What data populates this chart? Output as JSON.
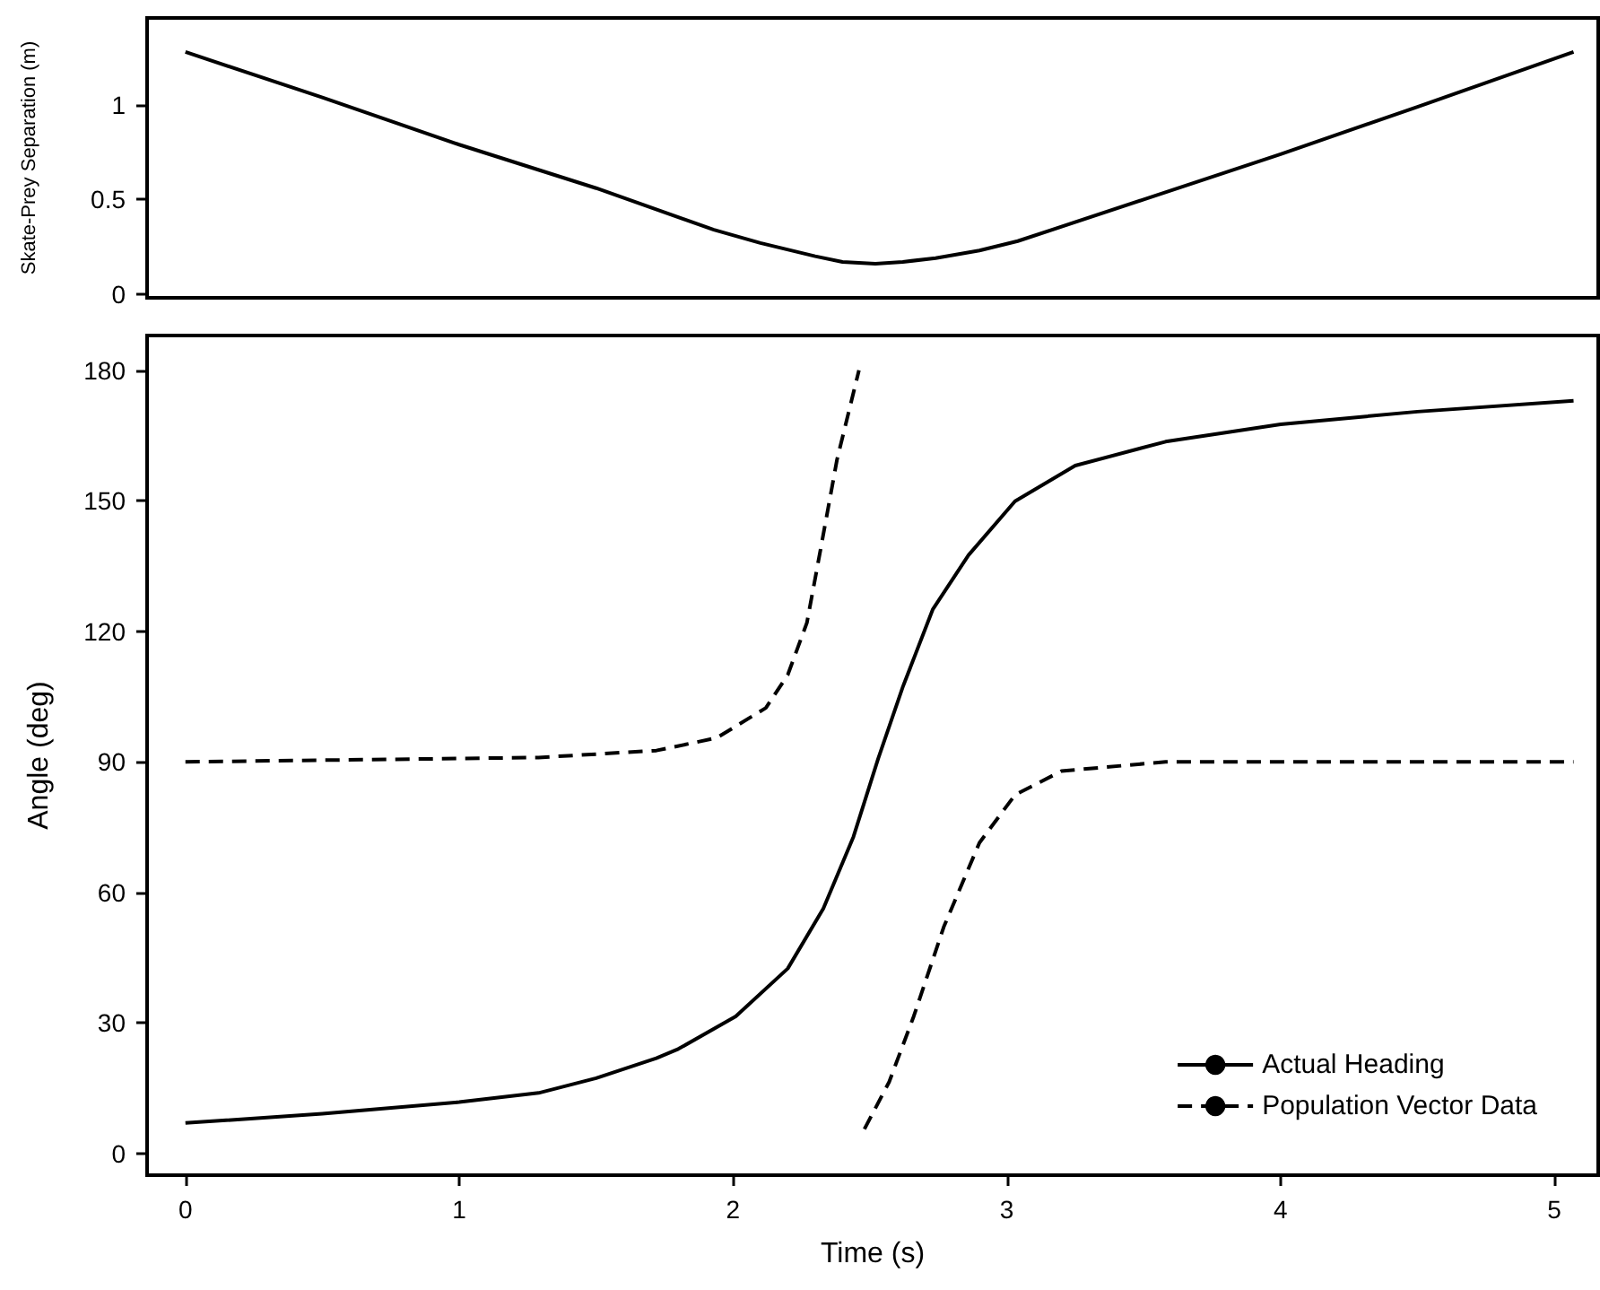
{
  "chart_data": [
    {
      "type": "line",
      "ylabel": "Skate-Prey Separation (m)",
      "xlim": [
        -0.14,
        5.16
      ],
      "ylim": [
        -0.02,
        1.46
      ],
      "yticks": [
        0,
        0.5,
        1
      ],
      "tick_labels": "y",
      "grid": false,
      "legend": false,
      "series": [
        {
          "color": "#000000",
          "line_style": "solid",
          "x": [
            0,
            0.5,
            1,
            1.5,
            1.93,
            2.1,
            2.3,
            2.4,
            2.52,
            2.62,
            2.74,
            2.9,
            3.04,
            3.5,
            4,
            4.5,
            5.07
          ],
          "values": [
            1.28,
            1.04,
            0.79,
            0.56,
            0.34,
            0.27,
            0.2,
            0.17,
            0.16,
            0.17,
            0.19,
            0.23,
            0.28,
            0.5,
            0.74,
            0.99,
            1.28
          ]
        }
      ]
    },
    {
      "type": "line",
      "xlabel": "Time (s)",
      "ylabel": "Angle (deg)",
      "xlim": [
        -0.14,
        5.16
      ],
      "ylim": [
        -5,
        188
      ],
      "xticks": [
        0,
        1,
        2,
        3,
        4,
        5
      ],
      "yticks": [
        0,
        30,
        60,
        90,
        120,
        150,
        180
      ],
      "grid": false,
      "legend": "bottom right",
      "series": [
        {
          "name": "Actual Heading",
          "color": "#000000",
          "line_style": "solid",
          "x": [
            0,
            0.5,
            1,
            1.29,
            1.5,
            1.72,
            1.8,
            2.01,
            2.2,
            2.33,
            2.44,
            2.53,
            2.62,
            2.73,
            2.86,
            3.03,
            3.25,
            3.58,
            4,
            4.5,
            5.07
          ],
          "values": [
            7,
            9.1,
            11.8,
            13.9,
            17.3,
            21.9,
            24,
            31.5,
            42.5,
            56.3,
            72.8,
            90.7,
            107.2,
            125.1,
            137.5,
            149.9,
            158.1,
            163.6,
            167.6,
            170.5,
            173
          ]
        },
        {
          "name": "Population Vector Data",
          "color": "#000000",
          "line_style": "dashed",
          "x": [
            0,
            1.29,
            1.72,
            1.94,
            2.12,
            2.2,
            2.27,
            2.32,
            2.38,
            2.46,
            2.47,
            2.48,
            2.57,
            2.66,
            2.77,
            2.9,
            3.03,
            3.2,
            3.58,
            5.07
          ],
          "values": [
            90,
            91,
            92.6,
            95.5,
            102.4,
            110,
            122,
            138.9,
            159.5,
            180,
            null,
            5.6,
            16.4,
            31.5,
            52.1,
            71.4,
            82.4,
            87.9,
            90,
            90
          ]
        }
      ]
    }
  ]
}
